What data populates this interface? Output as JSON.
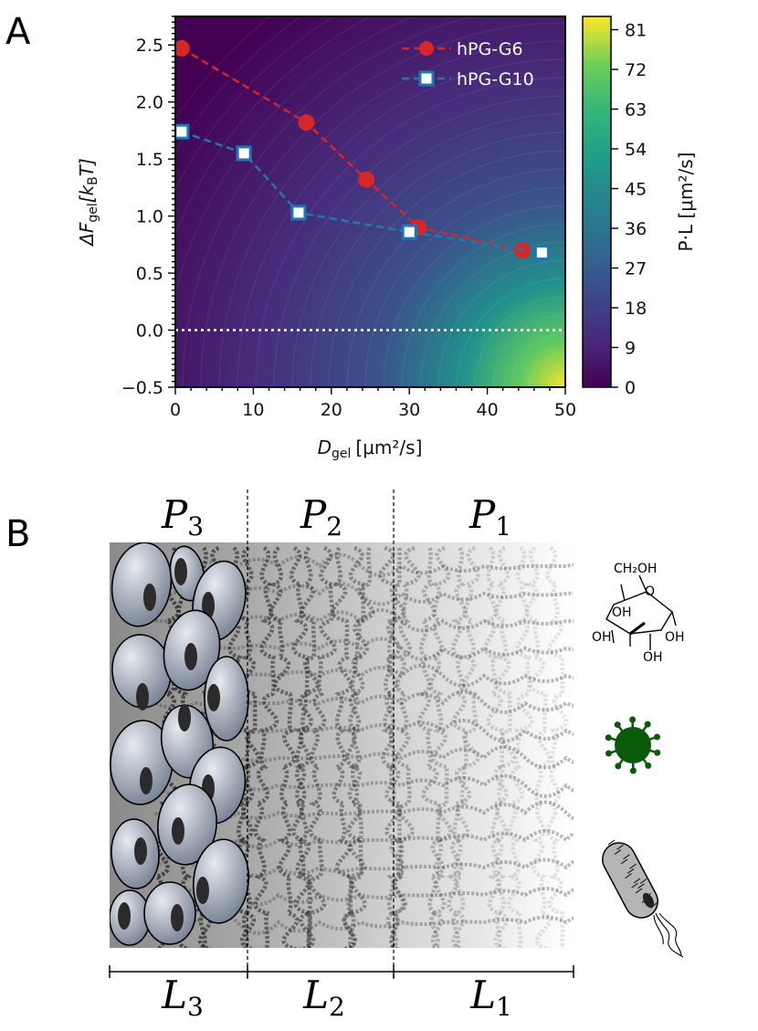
{
  "panels": {
    "a": "A",
    "b": "B"
  },
  "chart_data": {
    "type": "line",
    "xlabel_main": "D",
    "xlabel_sub": "gel",
    "xlabel_units": "[μm²/s]",
    "ylabel_prefix": "ΔF",
    "ylabel_sub": "gel",
    "ylabel_bracket": "[k",
    "ylabel_b": "B",
    "ylabel_end": "T]",
    "xlim": [
      0,
      50
    ],
    "ylim": [
      -0.5,
      2.75
    ],
    "xticks": [
      0,
      10,
      20,
      30,
      40,
      50
    ],
    "yticks": [
      -0.5,
      0.0,
      0.5,
      1.0,
      1.5,
      2.0,
      2.5
    ],
    "ytick_labels": [
      "−0.5",
      "0.0",
      "0.5",
      "1.0",
      "1.5",
      "2.0",
      "2.5"
    ],
    "zero_line": true,
    "legend_position": "top-right",
    "background": "filled contour of P·L over D_gel and ΔF_gel",
    "series": [
      {
        "name": "hPG-G6",
        "marker": "circle",
        "color": "#d62728",
        "x": [
          0.8,
          16.8,
          24.5,
          31.2,
          44.5
        ],
        "y": [
          2.47,
          1.82,
          1.32,
          0.9,
          0.7
        ]
      },
      {
        "name": "hPG-G10",
        "marker": "square",
        "color": "#1f77b4",
        "x": [
          0.8,
          8.8,
          15.8,
          30.0,
          47.0
        ],
        "y": [
          1.74,
          1.55,
          1.03,
          0.86,
          0.68
        ]
      }
    ],
    "colorbar": {
      "label": "P·L [μm²/s]",
      "min": 0,
      "max": 84,
      "ticks": [
        0,
        9,
        18,
        27,
        36,
        45,
        54,
        63,
        72,
        81
      ],
      "colormap": "viridis"
    }
  },
  "schematic": {
    "regions": [
      {
        "letter": "P",
        "sub": "3"
      },
      {
        "letter": "P",
        "sub": "2"
      },
      {
        "letter": "P",
        "sub": "1"
      }
    ],
    "lengths": [
      {
        "letter": "L",
        "sub": "3"
      },
      {
        "letter": "L",
        "sub": "2"
      },
      {
        "letter": "L",
        "sub": "1"
      }
    ],
    "glucose_labels": {
      "ch2oh": "CH₂OH",
      "oh": "OH"
    },
    "colors": {
      "virus": "#0b5a0b",
      "bacterium": "#b5b5b5",
      "cells": "#8f98a8"
    }
  }
}
